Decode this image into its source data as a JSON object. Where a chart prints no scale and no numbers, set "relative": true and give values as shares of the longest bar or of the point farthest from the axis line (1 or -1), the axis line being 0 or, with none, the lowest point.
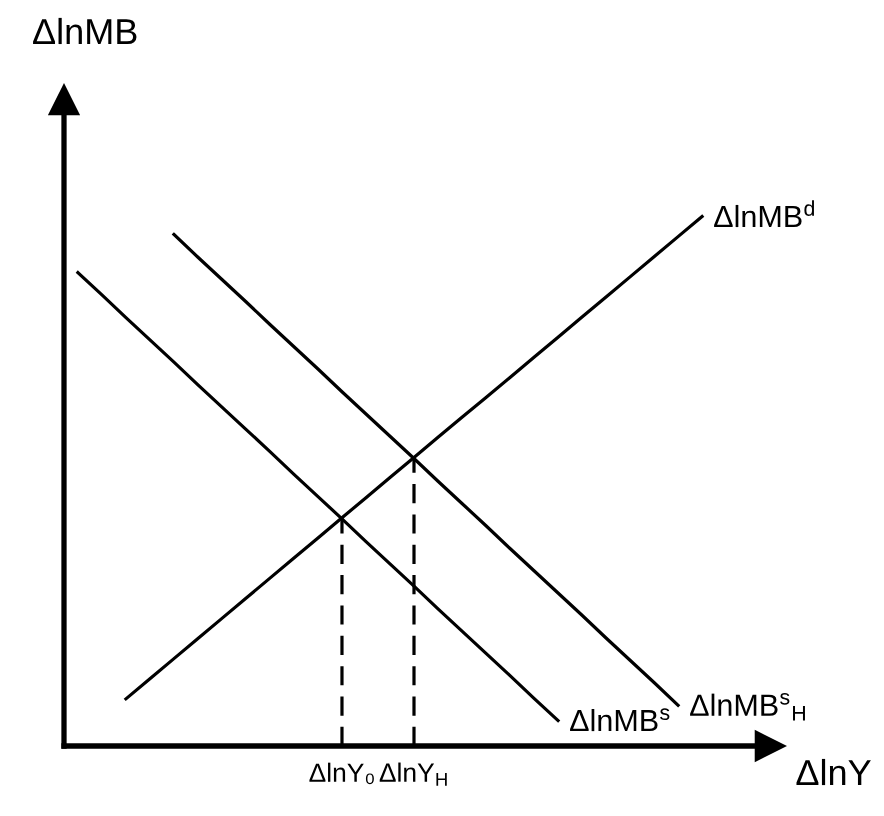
{
  "chart_data": {
    "type": "line",
    "relative": true,
    "ylabel": "ΔlnMB",
    "xlabel": "ΔlnY",
    "categories": [
      null,
      null,
      null,
      null,
      null,
      null,
      null,
      null,
      null,
      null,
      null,
      "ΔlnY₀",
      null,
      null,
      "ΔlnY$_{H}$",
      null,
      null,
      null,
      null,
      null,
      null,
      null,
      null,
      null,
      null,
      null,
      null
    ],
    "tick_labels": "x",
    "marker": "none",
    "line_style": "solid",
    "series": [
      {
        "name": "ΔlnMB$^{d}$",
        "color": "#000000",
        "values": [
          null,
          null,
          0.089,
          0.127,
          0.165,
          0.203,
          0.241,
          0.279,
          0.317,
          0.355,
          0.393,
          0.431,
          0.469,
          0.507,
          0.545,
          0.583,
          0.621,
          0.658,
          0.696,
          0.734,
          0.772,
          0.81,
          0.848,
          0.886,
          0.924,
          0.962,
          1.0
        ]
      },
      {
        "name": "ΔlnMB$^{s}$",
        "color": "#000000",
        "values": [
          0.894,
          0.852,
          0.809,
          0.767,
          0.725,
          0.682,
          0.64,
          0.598,
          0.556,
          0.513,
          0.471,
          0.429,
          0.386,
          0.344,
          0.302,
          0.259,
          0.217,
          0.175,
          0.133,
          0.09,
          0.048,
          null,
          null,
          null,
          null,
          null,
          null
        ]
      },
      {
        "name": "ΔlnMB$^{s}$$_{H}$",
        "color": "#000000",
        "values": [
          null,
          null,
          null,
          null,
          0.966,
          0.923,
          0.881,
          0.839,
          0.796,
          0.754,
          0.712,
          0.669,
          0.627,
          0.585,
          0.543,
          0.5,
          0.458,
          0.416,
          0.373,
          0.331,
          0.289,
          0.247,
          0.204,
          0.162,
          0.12,
          0.077,
          null
        ]
      },
      {
        "color": "#000000",
        "x": [
          "ΔlnY₀",
          "ΔlnY₀"
        ],
        "values": [
          0,
          0.43
        ],
        "line_style": "dashed"
      },
      {
        "color": "#000000",
        "x": [
          "ΔlnY$_{H}$",
          "ΔlnY$_{H}$"
        ],
        "values": [
          0,
          0.544
        ],
        "line_style": "dashed"
      }
    ]
  }
}
